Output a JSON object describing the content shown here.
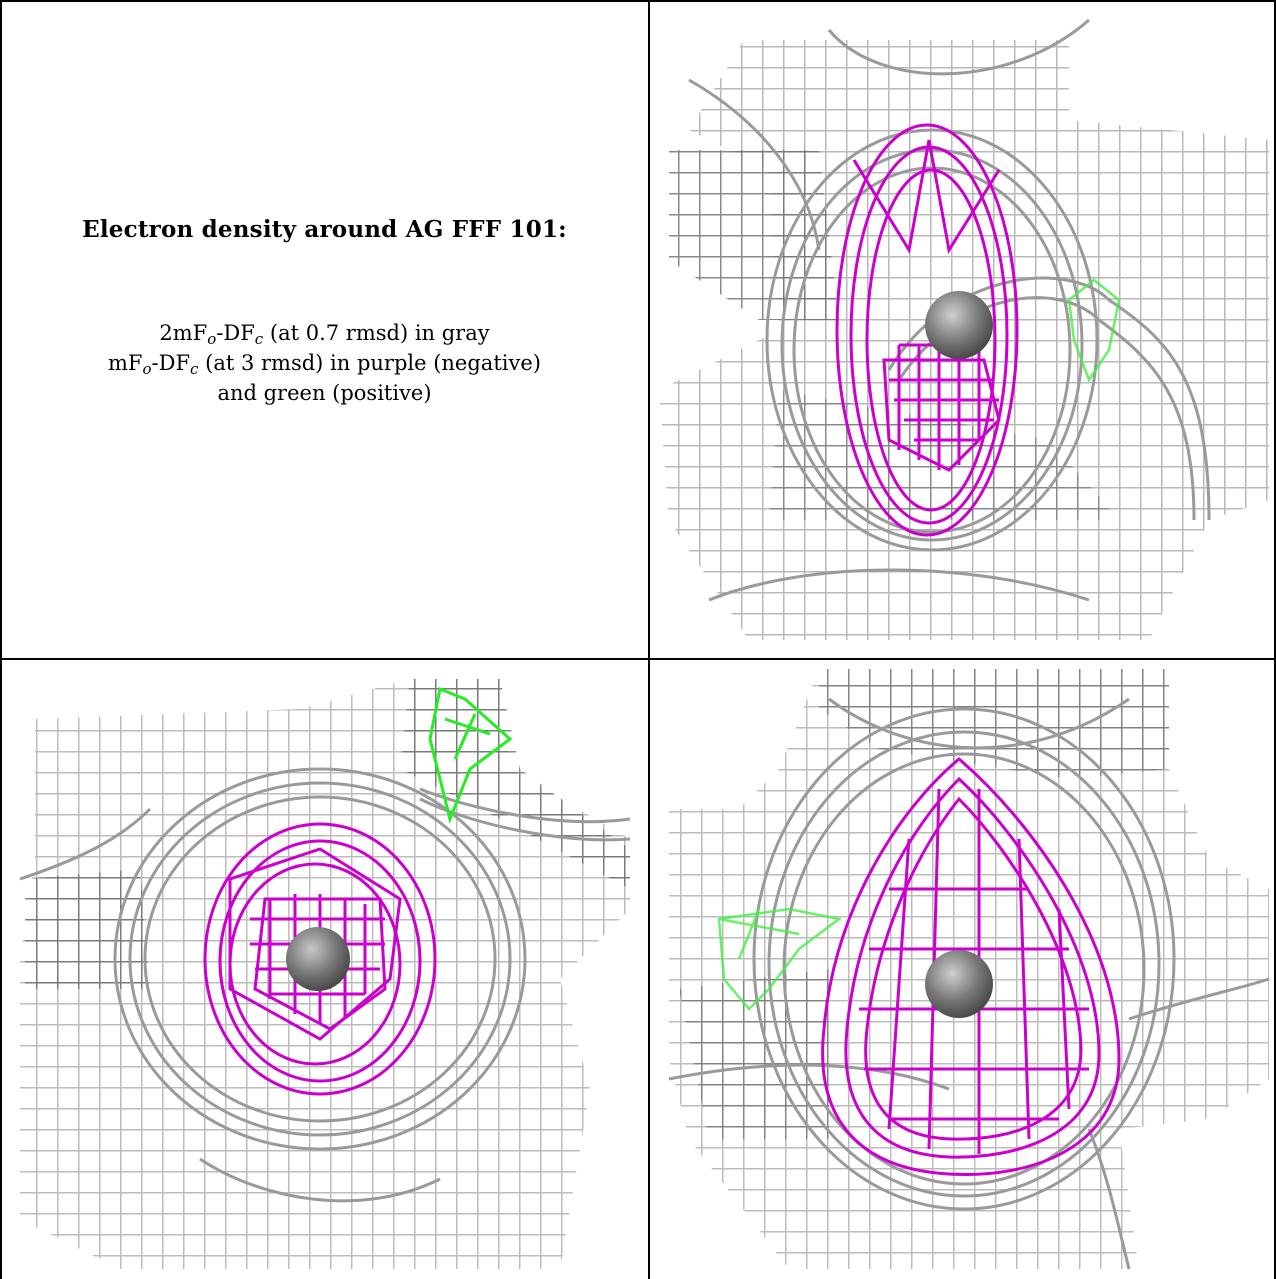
{
  "caption": {
    "title": "Electron density around AG FFF 101:",
    "line1": {
      "prefix": "2mF",
      "s1": "o",
      "mid": "-DF",
      "s2": "c",
      "suffix": " (at 0.7 rmsd) in gray"
    },
    "line2": {
      "prefix": "mF",
      "s1": "o",
      "mid": "-DF",
      "s2": "c",
      "suffix": " (at 3 rmsd) in purple (negative)"
    },
    "line3": "and green (positive)"
  },
  "colors": {
    "density_2fofc": "#8c8c8c",
    "density_dark": "#555555",
    "negative_difference": "#cc00cc",
    "positive_difference": "#22ee22",
    "atom": "#808080",
    "border": "#000000"
  },
  "panels": [
    {
      "name": "view-top-right",
      "blob": "elongated",
      "atom": "silver"
    },
    {
      "name": "view-bottom-left",
      "blob": "round",
      "atom": "silver"
    },
    {
      "name": "view-bottom-right",
      "blob": "teardrop",
      "atom": "silver"
    }
  ]
}
